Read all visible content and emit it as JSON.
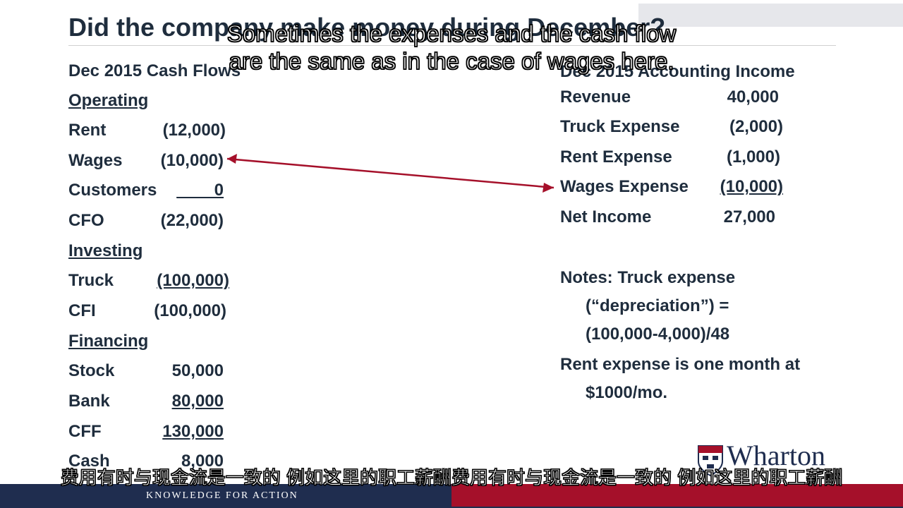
{
  "slide": {
    "title": "Did the company make money during December?",
    "cash_flows": {
      "heading": "Dec 2015 Cash Flows",
      "operating_label": "Operating",
      "rent": {
        "label": "Rent",
        "value": "(12,000)"
      },
      "wages": {
        "label": "Wages",
        "value": "(10,000)"
      },
      "customers": {
        "label": "Customers",
        "value": "____0"
      },
      "cfo": {
        "label": "CFO",
        "value": "(22,000)"
      },
      "investing_label": "Investing",
      "truck": {
        "label": "Truck",
        "value": "(100,000)"
      },
      "cfi": {
        "label": "CFI",
        "value": "(100,000)"
      },
      "financing_label": "Financing",
      "stock": {
        "label": "Stock",
        "value": "50,000"
      },
      "bank": {
        "label": "Bank",
        "value": "80,000"
      },
      "cff": {
        "label": "CFF",
        "value": "130,000"
      },
      "cash": {
        "label": "Cash",
        "value": "8,000"
      }
    },
    "income": {
      "heading": "Dec 2015 Accounting Income",
      "revenue": {
        "label": "Revenue",
        "value": "40,000"
      },
      "truck_expense": {
        "label": "Truck Expense",
        "value": "(2,000)"
      },
      "rent_expense": {
        "label": "Rent Expense",
        "value": "(1,000)"
      },
      "wages_expense": {
        "label": "Wages Expense",
        "value": "(10,000)"
      },
      "net_income": {
        "label": "Net Income",
        "value": "27,000"
      }
    },
    "notes": {
      "line1": "Notes: Truck expense",
      "line2": "(“depreciation”) =",
      "line3": "(100,000-4,000)/48",
      "line4": "Rent expense is one month at",
      "line5": "$1000/mo."
    },
    "arrow_color": "#a5102a"
  },
  "subtitles": {
    "en_line1": "Sometimes the expenses and the cash flow",
    "en_line2": "are the same as in the case of wages here.",
    "zh_line": "费用有时与现金流是一致的 例如这里的职工薪酬费用有时与现金流是一致的 例如这里的职工薪酬"
  },
  "branding": {
    "logo_text": "Wharton",
    "tagline": "KNOWLEDGE FOR ACTION",
    "navy": "#1f2d4f",
    "red": "#a5102a"
  }
}
